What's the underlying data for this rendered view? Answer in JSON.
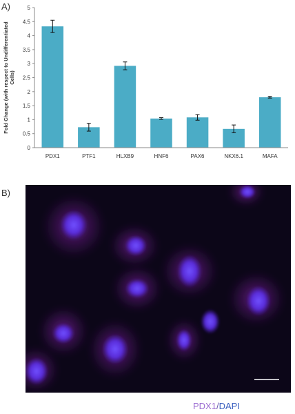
{
  "panel_a_label": "A)",
  "panel_b_label": "B)",
  "chart_data": {
    "type": "bar",
    "categories": [
      "PDX1",
      "PTF1",
      "HLXB9",
      "HNF6",
      "PAX6",
      "NKX6.1",
      "MAFA"
    ],
    "values": [
      4.33,
      0.73,
      2.92,
      1.04,
      1.08,
      0.67,
      1.8
    ],
    "errors": [
      0.22,
      0.14,
      0.14,
      0.03,
      0.1,
      0.14,
      0.03
    ],
    "title": "",
    "xlabel": "",
    "ylabel": "Fold Change (with respect to Undifferentiated Cells)",
    "ylabel_lines": [
      "Fold Change (with respect to Undifferentiated",
      "Cells)"
    ],
    "ylim": [
      0,
      5
    ],
    "yticks": [
      "0",
      "0.5",
      "1",
      "1.5",
      "2",
      "2.5",
      "3",
      "3.5",
      "4",
      "4.5",
      "5"
    ],
    "grid": false,
    "bar_color": "#4bacc6"
  },
  "micrograph": {
    "background_color": "#0c0618",
    "nucleus_color": "#5a2ee0",
    "stain_color": "#b030d0"
  },
  "caption": {
    "left": "PDX1",
    "separator": "/",
    "right": "DAPI"
  }
}
